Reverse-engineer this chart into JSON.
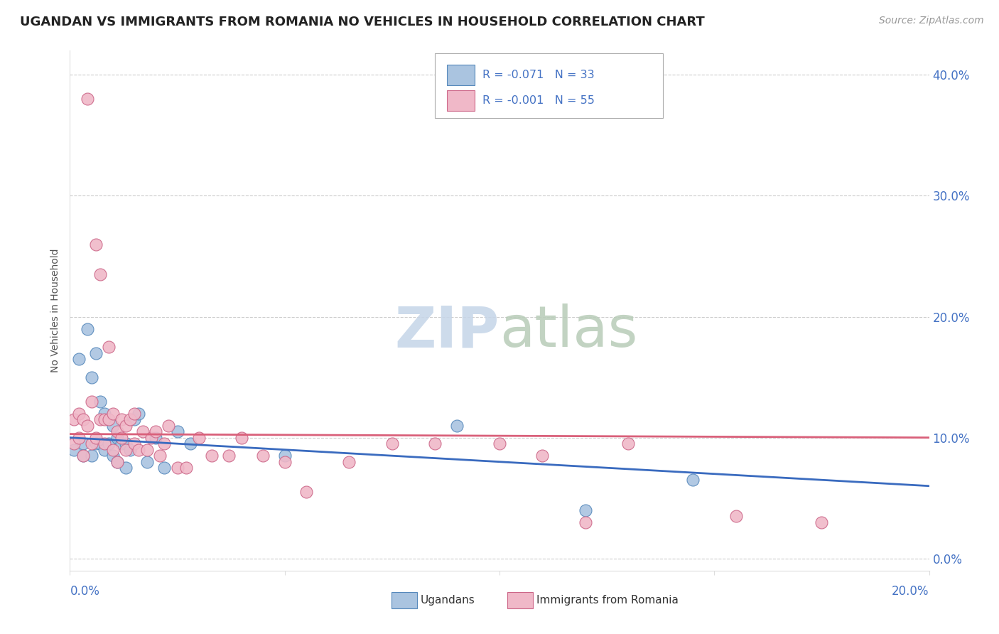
{
  "title": "UGANDAN VS IMMIGRANTS FROM ROMANIA NO VEHICLES IN HOUSEHOLD CORRELATION CHART",
  "source_text": "Source: ZipAtlas.com",
  "ylabel": "No Vehicles in Household",
  "xlim": [
    0.0,
    0.2
  ],
  "ylim": [
    -0.01,
    0.42
  ],
  "ytick_values": [
    0.0,
    0.1,
    0.2,
    0.3,
    0.4
  ],
  "xtick_values": [
    0.0,
    0.05,
    0.1,
    0.15,
    0.2
  ],
  "legend_r1": "-0.071",
  "legend_n1": "33",
  "legend_r2": "-0.001",
  "legend_n2": "55",
  "blue_color": "#aac4e0",
  "pink_color": "#f0b8c8",
  "blue_line_color": "#3a6bbf",
  "pink_line_color": "#d9607a",
  "blue_dot_edge": "#5588bb",
  "pink_dot_edge": "#cc6688",
  "text_color_blue": "#4472c4",
  "ugandan_x": [
    0.001,
    0.002,
    0.003,
    0.003,
    0.004,
    0.005,
    0.005,
    0.006,
    0.006,
    0.007,
    0.007,
    0.008,
    0.008,
    0.009,
    0.01,
    0.01,
    0.011,
    0.011,
    0.012,
    0.013,
    0.013,
    0.014,
    0.015,
    0.016,
    0.018,
    0.02,
    0.022,
    0.025,
    0.028,
    0.05,
    0.09,
    0.12,
    0.145
  ],
  "ugandan_y": [
    0.09,
    0.165,
    0.095,
    0.085,
    0.19,
    0.15,
    0.085,
    0.17,
    0.095,
    0.13,
    0.095,
    0.12,
    0.09,
    0.095,
    0.11,
    0.085,
    0.1,
    0.08,
    0.095,
    0.095,
    0.075,
    0.09,
    0.115,
    0.12,
    0.08,
    0.1,
    0.075,
    0.105,
    0.095,
    0.085,
    0.11,
    0.04,
    0.065
  ],
  "romania_x": [
    0.001,
    0.001,
    0.002,
    0.002,
    0.003,
    0.003,
    0.004,
    0.004,
    0.005,
    0.005,
    0.006,
    0.006,
    0.007,
    0.007,
    0.008,
    0.008,
    0.009,
    0.009,
    0.01,
    0.01,
    0.011,
    0.011,
    0.012,
    0.012,
    0.013,
    0.013,
    0.014,
    0.015,
    0.015,
    0.016,
    0.017,
    0.018,
    0.019,
    0.02,
    0.021,
    0.022,
    0.023,
    0.025,
    0.027,
    0.03,
    0.033,
    0.037,
    0.04,
    0.045,
    0.05,
    0.055,
    0.065,
    0.075,
    0.085,
    0.1,
    0.11,
    0.12,
    0.13,
    0.155,
    0.175
  ],
  "romania_y": [
    0.115,
    0.095,
    0.12,
    0.1,
    0.115,
    0.085,
    0.38,
    0.11,
    0.13,
    0.095,
    0.26,
    0.1,
    0.235,
    0.115,
    0.115,
    0.095,
    0.175,
    0.115,
    0.12,
    0.09,
    0.105,
    0.08,
    0.115,
    0.1,
    0.11,
    0.09,
    0.115,
    0.12,
    0.095,
    0.09,
    0.105,
    0.09,
    0.1,
    0.105,
    0.085,
    0.095,
    0.11,
    0.075,
    0.075,
    0.1,
    0.085,
    0.085,
    0.1,
    0.085,
    0.08,
    0.055,
    0.08,
    0.095,
    0.095,
    0.095,
    0.085,
    0.03,
    0.095,
    0.035,
    0.03
  ]
}
